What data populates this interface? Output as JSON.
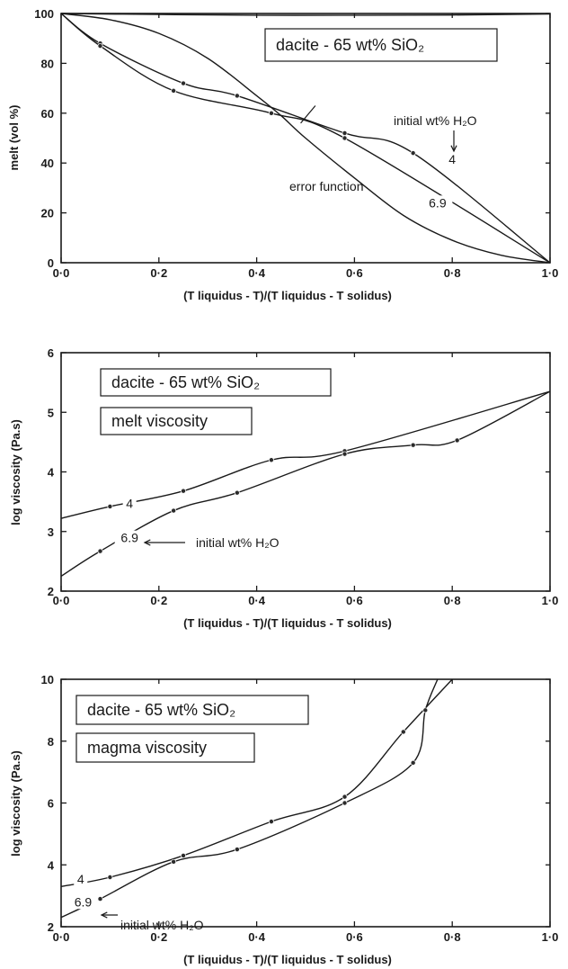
{
  "chart_data": [
    {
      "type": "line",
      "title": "",
      "xlabel": "(T liquidus - T)/(T liquidus - T solidus)",
      "ylabel": "melt (vol %)",
      "xlim": [
        0,
        1
      ],
      "ylim": [
        0,
        100
      ],
      "x_ticks": [
        0,
        0.2,
        0.4,
        0.6,
        0.8,
        1.0
      ],
      "x_tick_labels": [
        "0·0",
        "0·2",
        "0·4",
        "0·6",
        "0·8",
        "1·0"
      ],
      "y_ticks": [
        0,
        20,
        40,
        60,
        80,
        100
      ],
      "y_tick_labels": [
        "0",
        "20",
        "40",
        "60",
        "80",
        "100"
      ],
      "boxes": [
        {
          "text": "dacite - 65 wt% SiO₂"
        }
      ],
      "annotations": [
        {
          "id": "initial",
          "text": "initial wt% H₂O"
        },
        {
          "id": "error",
          "text": "error function"
        }
      ],
      "series": [
        {
          "name": "4",
          "points": [
            [
              0,
              100
            ],
            [
              0.08,
              88
            ],
            [
              0.25,
              72
            ],
            [
              0.36,
              67
            ],
            [
              0.58,
              52
            ],
            [
              0.72,
              44
            ],
            [
              1.0,
              0
            ]
          ],
          "markers": true
        },
        {
          "name": "6.9",
          "points": [
            [
              0,
              100
            ],
            [
              0.08,
              87
            ],
            [
              0.23,
              69
            ],
            [
              0.43,
              60
            ],
            [
              0.58,
              50
            ],
            [
              1.0,
              0
            ]
          ],
          "markers": true
        },
        {
          "name": "error function",
          "points": [
            [
              0,
              100
            ],
            [
              0.1,
              97.5
            ],
            [
              0.2,
              92
            ],
            [
              0.3,
              82
            ],
            [
              0.4,
              67
            ],
            [
              0.45,
              59
            ],
            [
              0.5,
              50
            ],
            [
              0.6,
              34
            ],
            [
              0.7,
              19
            ],
            [
              0.8,
              9
            ],
            [
              0.9,
              3
            ],
            [
              1.0,
              0
            ]
          ],
          "markers": false
        },
        {
          "name": "",
          "points": [
            [
              0,
              100
            ],
            [
              0.2,
              99.6
            ],
            [
              0.4,
              99.3
            ],
            [
              0.6,
              99.3
            ],
            [
              0.8,
              99.4
            ],
            [
              1.0,
              99.8
            ]
          ],
          "markers": false
        }
      ]
    },
    {
      "type": "line",
      "title": "",
      "xlabel": "(T liquidus - T)/(T liquidus - T solidus)",
      "ylabel": "log viscosity (Pa.s)",
      "xlim": [
        0,
        1
      ],
      "ylim": [
        2,
        6
      ],
      "x_ticks": [
        0,
        0.2,
        0.4,
        0.6,
        0.8,
        1.0
      ],
      "x_tick_labels": [
        "0·0",
        "0·2",
        "0·4",
        "0·6",
        "0·8",
        "1·0"
      ],
      "y_ticks": [
        2,
        3,
        4,
        5,
        6
      ],
      "y_tick_labels": [
        "2",
        "3",
        "4",
        "5",
        "6"
      ],
      "boxes": [
        {
          "text": "dacite - 65 wt% SiO₂"
        },
        {
          "text": "melt viscosity"
        }
      ],
      "annotations": [
        {
          "id": "initial",
          "text": "initial wt% H₂O"
        }
      ],
      "series": [
        {
          "name": "4",
          "points": [
            [
              0,
              3.22
            ],
            [
              0.1,
              3.42
            ],
            [
              0.25,
              3.68
            ],
            [
              0.43,
              4.2
            ],
            [
              0.58,
              4.35
            ],
            [
              1.0,
              5.35
            ]
          ],
          "markers": true
        },
        {
          "name": "6.9",
          "points": [
            [
              0,
              2.25
            ],
            [
              0.08,
              2.67
            ],
            [
              0.23,
              3.35
            ],
            [
              0.36,
              3.65
            ],
            [
              0.58,
              4.3
            ],
            [
              0.72,
              4.45
            ],
            [
              0.81,
              4.53
            ],
            [
              1.0,
              5.35
            ]
          ],
          "markers": true
        }
      ]
    },
    {
      "type": "line",
      "title": "",
      "xlabel": "(T liquidus - T)/(T liquidus - T solidus)",
      "ylabel": "log viscosity (Pa.s)",
      "xlim": [
        0,
        1
      ],
      "ylim": [
        2,
        10
      ],
      "x_ticks": [
        0,
        0.2,
        0.4,
        0.6,
        0.8,
        1.0
      ],
      "x_tick_labels": [
        "0·0",
        "0·2",
        "0·4",
        "0·6",
        "0·8",
        "1·0"
      ],
      "y_ticks": [
        2,
        4,
        6,
        8,
        10
      ],
      "y_tick_labels": [
        "2",
        "4",
        "6",
        "8",
        "10"
      ],
      "boxes": [
        {
          "text": "dacite - 65 wt% SiO₂"
        },
        {
          "text": "magma viscosity"
        }
      ],
      "annotations": [
        {
          "id": "initial",
          "text": "initial wt% H₂O"
        }
      ],
      "series": [
        {
          "name": "4",
          "points": [
            [
              0,
              3.3
            ],
            [
              0.1,
              3.6
            ],
            [
              0.25,
              4.3
            ],
            [
              0.43,
              5.4
            ],
            [
              0.58,
              6.2
            ],
            [
              0.7,
              8.3
            ],
            [
              0.8,
              10.0
            ]
          ],
          "markers": true
        },
        {
          "name": "6.9",
          "points": [
            [
              0,
              2.3
            ],
            [
              0.08,
              2.9
            ],
            [
              0.23,
              4.1
            ],
            [
              0.36,
              4.5
            ],
            [
              0.58,
              6.0
            ],
            [
              0.72,
              7.3
            ],
            [
              0.745,
              9.0
            ],
            [
              0.77,
              10.0
            ]
          ],
          "markers": true
        }
      ]
    }
  ]
}
